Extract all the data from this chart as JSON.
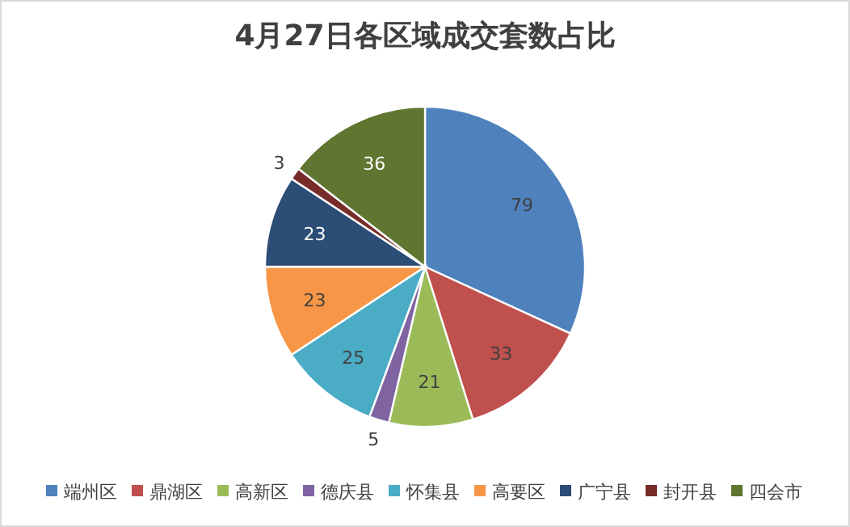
{
  "chart_data": {
    "type": "pie",
    "title": "4月27日各区域成交套数占比",
    "categories": [
      "端州区",
      "鼎湖区",
      "高新区",
      "德庆县",
      "怀集县",
      "高要区",
      "广宁县",
      "封开县",
      "四会市"
    ],
    "values": [
      79,
      33,
      21,
      5,
      25,
      23,
      23,
      3,
      36
    ],
    "colors": [
      "#4f81bd",
      "#c0504d",
      "#9bbb59",
      "#8064a2",
      "#4bacc6",
      "#f79646",
      "#2c4d75",
      "#772c2a",
      "#5f7530"
    ],
    "data_labels": true,
    "legend": "bottom"
  }
}
